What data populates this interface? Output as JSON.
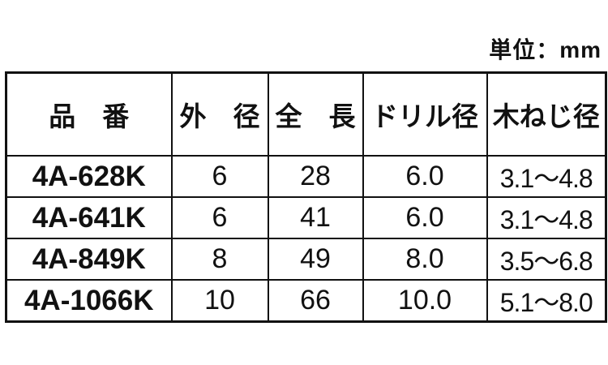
{
  "page": {
    "unit_label": "単位：mm",
    "background_color": "#ffffff",
    "border_color": "#111111",
    "text_color": "#111111"
  },
  "table": {
    "columns": [
      "品　番",
      "外　径",
      "全　長",
      "ドリル径",
      "木ねじ径"
    ],
    "rows": [
      [
        "4A-628K",
        "6",
        "28",
        "6.0",
        "3.1〜4.8"
      ],
      [
        "4A-641K",
        "6",
        "41",
        "6.0",
        "3.1〜4.8"
      ],
      [
        "4A-849K",
        "8",
        "49",
        "8.0",
        "3.5〜6.8"
      ],
      [
        "4A-1066K",
        "10",
        "66",
        "10.0",
        "5.1〜8.0"
      ]
    ]
  }
}
